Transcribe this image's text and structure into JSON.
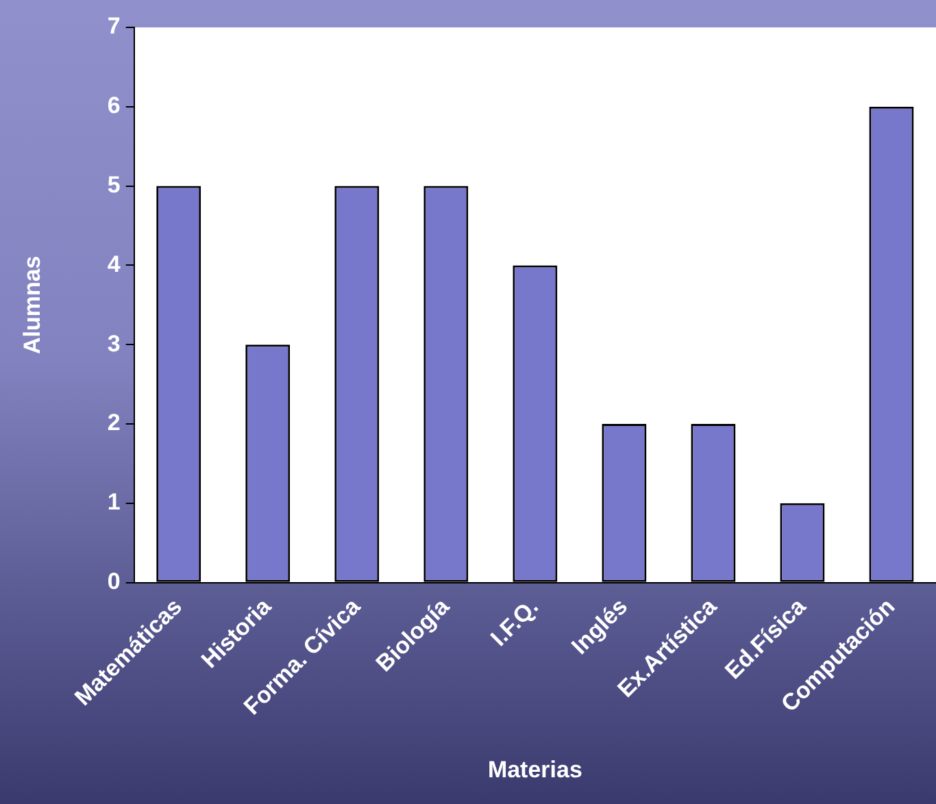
{
  "chart_data": {
    "type": "bar",
    "xlabel": "Materias",
    "ylabel": "Alumnas",
    "categories": [
      "Matemáticas",
      "Historia",
      "Forma. Cívica",
      "Biología",
      "I.F.Q.",
      "Inglés",
      "Ex.Artística",
      "Ed.Física",
      "Computación"
    ],
    "values": [
      5,
      3,
      5,
      5,
      4,
      2,
      2,
      1,
      6
    ],
    "color": "#7777cc",
    "ylim": [
      0,
      7
    ],
    "yticks": [
      0,
      1,
      2,
      3,
      4,
      5,
      6,
      7
    ],
    "grid": false,
    "legend": false
  }
}
